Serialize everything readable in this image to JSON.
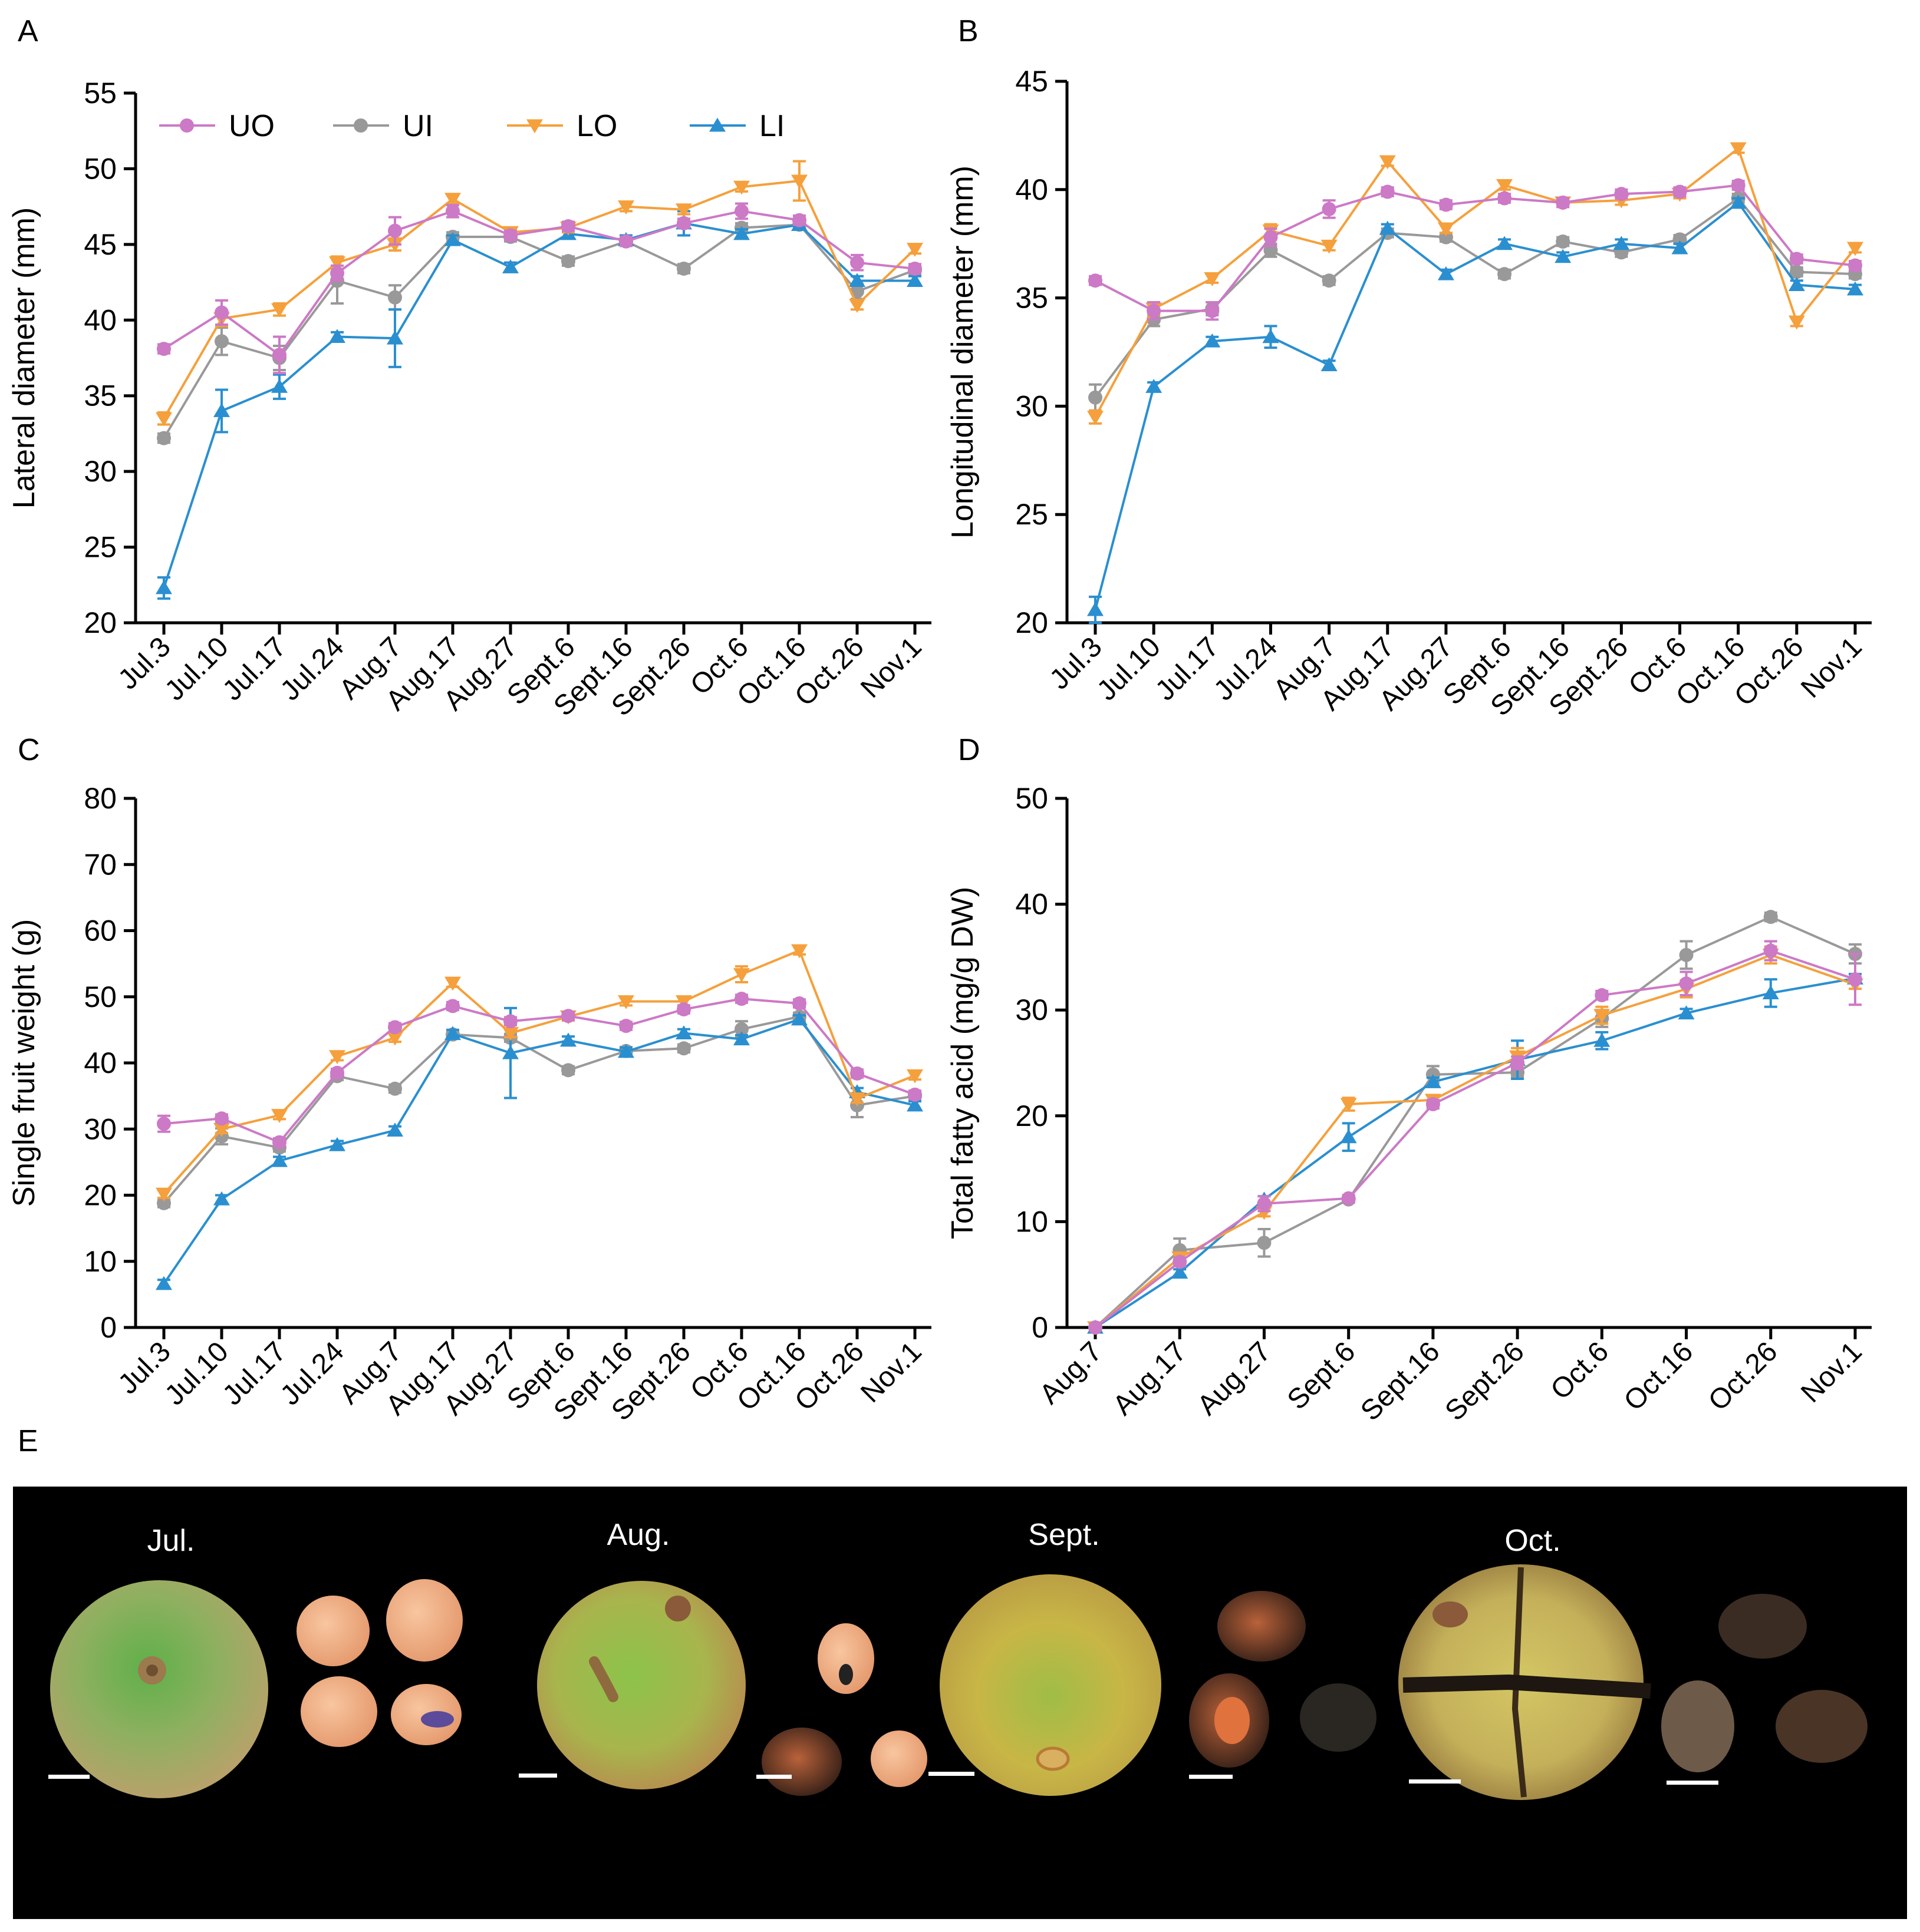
{
  "colors": {
    "UO": "#cc79c6",
    "UI": "#999999",
    "LO": "#f5a03c",
    "LI": "#2a8fd0"
  },
  "legend": [
    {
      "key": "UO",
      "label": "UO",
      "marker": "circle"
    },
    {
      "key": "UI",
      "label": "UI",
      "marker": "circle"
    },
    {
      "key": "LO",
      "label": "LO",
      "marker": "triangle-down"
    },
    {
      "key": "LI",
      "label": "LI",
      "marker": "triangle-up"
    }
  ],
  "chart_data": [
    {
      "panel": "A",
      "type": "line",
      "ylabel": "Lateral diameter (mm)",
      "ylim": [
        20,
        55
      ],
      "yticks": [
        20,
        25,
        30,
        35,
        40,
        45,
        50,
        55
      ],
      "categories": [
        "Jul.3",
        "Jul.10",
        "Jul.17",
        "Jul.24",
        "Aug.7",
        "Aug.17",
        "Aug.27",
        "Sept.6",
        "Sept.16",
        "Sept.26",
        "Oct.6",
        "Oct.16",
        "Oct.26",
        "Nov.1"
      ],
      "legend_position": "top",
      "series": [
        {
          "name": "UO",
          "values": [
            38.1,
            40.5,
            37.7,
            43.1,
            45.9,
            47.2,
            45.6,
            46.2,
            45.2,
            46.4,
            47.2,
            46.6,
            43.8,
            43.4
          ],
          "errors": [
            0.3,
            0.8,
            1.2,
            0.5,
            0.9,
            0.4,
            0.3,
            0.3,
            0.3,
            0.3,
            0.5,
            0.3,
            0.5,
            0.3
          ]
        },
        {
          "name": "UI",
          "values": [
            32.2,
            38.6,
            37.5,
            42.6,
            41.5,
            45.5,
            45.5,
            43.9,
            45.2,
            43.4,
            46.1,
            46.3,
            41.9,
            43.3
          ],
          "errors": [
            0.3,
            0.9,
            0.8,
            1.5,
            0.8,
            0.3,
            0.3,
            0.3,
            0.3,
            0.3,
            0.3,
            0.3,
            0.5,
            0.3
          ]
        },
        {
          "name": "LO",
          "values": [
            33.5,
            40.1,
            40.7,
            43.8,
            45.0,
            48.0,
            45.8,
            46.1,
            47.5,
            47.3,
            48.8,
            49.2,
            41.0,
            44.7
          ],
          "errors": [
            0.4,
            0.5,
            0.4,
            0.4,
            0.4,
            0.3,
            0.3,
            0.3,
            0.3,
            0.3,
            0.3,
            1.3,
            0.3,
            0.3
          ]
        },
        {
          "name": "LI",
          "values": [
            22.3,
            34.0,
            35.6,
            38.9,
            38.8,
            45.3,
            43.5,
            45.7,
            45.3,
            46.4,
            45.7,
            46.3,
            42.6,
            42.6
          ],
          "errors": [
            0.7,
            1.4,
            0.8,
            0.3,
            1.9,
            0.3,
            0.3,
            0.3,
            0.3,
            0.8,
            0.3,
            0.3,
            0.3,
            0.3
          ]
        }
      ]
    },
    {
      "panel": "B",
      "type": "line",
      "ylabel": "Longitudinal diameter (mm)",
      "ylim": [
        20,
        45
      ],
      "yticks": [
        20,
        25,
        30,
        35,
        40,
        45
      ],
      "categories": [
        "Jul.3",
        "Jul.10",
        "Jul.17",
        "Jul.24",
        "Aug.7",
        "Aug.17",
        "Aug.27",
        "Sept.6",
        "Sept.16",
        "Sept.26",
        "Oct.6",
        "Oct.16",
        "Oct.26",
        "Nov.1"
      ],
      "series": [
        {
          "name": "UO",
          "values": [
            35.8,
            34.4,
            34.4,
            37.8,
            39.1,
            39.9,
            39.3,
            39.6,
            39.4,
            39.8,
            39.9,
            40.2,
            36.8,
            36.5
          ],
          "errors": [
            0.2,
            0.4,
            0.4,
            0.4,
            0.4,
            0.2,
            0.2,
            0.2,
            0.2,
            0.2,
            0.2,
            0.2,
            0.2,
            0.2
          ]
        },
        {
          "name": "UI",
          "values": [
            30.4,
            34.0,
            34.5,
            37.2,
            35.8,
            38.0,
            37.8,
            36.1,
            37.6,
            37.1,
            37.7,
            39.6,
            36.2,
            36.1
          ],
          "errors": [
            0.6,
            0.3,
            0.3,
            0.3,
            0.2,
            0.2,
            0.2,
            0.2,
            0.2,
            0.2,
            0.2,
            0.2,
            0.2,
            0.2
          ]
        },
        {
          "name": "LO",
          "values": [
            29.5,
            34.5,
            35.9,
            38.1,
            37.4,
            41.3,
            38.2,
            40.2,
            39.4,
            39.5,
            39.8,
            41.9,
            33.9,
            37.3
          ],
          "errors": [
            0.3,
            0.3,
            0.2,
            0.3,
            0.2,
            0.2,
            0.2,
            0.2,
            0.2,
            0.2,
            0.2,
            0.2,
            0.2,
            0.2
          ]
        },
        {
          "name": "LI",
          "values": [
            20.6,
            30.9,
            33.0,
            33.2,
            31.9,
            38.2,
            36.1,
            37.5,
            36.9,
            37.5,
            37.3,
            39.4,
            35.6,
            35.4
          ],
          "errors": [
            0.6,
            0.2,
            0.2,
            0.5,
            0.2,
            0.2,
            0.2,
            0.2,
            0.2,
            0.2,
            0.2,
            0.2,
            0.2,
            0.2
          ]
        }
      ]
    },
    {
      "panel": "C",
      "type": "line",
      "ylabel": "Single fruit weight (g)",
      "ylim": [
        0,
        80
      ],
      "yticks": [
        0,
        10,
        20,
        30,
        40,
        50,
        60,
        70,
        80
      ],
      "categories": [
        "Jul.3",
        "Jul.10",
        "Jul.17",
        "Jul.24",
        "Aug.7",
        "Aug.17",
        "Aug.27",
        "Sept.6",
        "Sept.16",
        "Sept.26",
        "Oct.6",
        "Oct.16",
        "Oct.26",
        "Nov.1"
      ],
      "series": [
        {
          "name": "UO",
          "values": [
            30.8,
            31.6,
            28.0,
            38.5,
            45.4,
            48.6,
            46.3,
            47.1,
            45.6,
            48.1,
            49.7,
            49.0,
            38.4,
            35.2
          ],
          "errors": [
            1.2,
            0.6,
            0.6,
            0.6,
            0.6,
            0.6,
            0.6,
            0.6,
            0.6,
            0.6,
            0.6,
            0.6,
            0.6,
            0.6
          ]
        },
        {
          "name": "UI",
          "values": [
            18.8,
            28.9,
            27.2,
            38.0,
            36.1,
            44.3,
            43.8,
            38.9,
            41.8,
            42.2,
            45.1,
            47.0,
            33.6,
            35.0
          ],
          "errors": [
            0.6,
            1.2,
            0.6,
            0.6,
            0.6,
            0.6,
            0.6,
            0.6,
            0.6,
            0.6,
            1.2,
            0.6,
            1.8,
            0.6
          ]
        },
        {
          "name": "LO",
          "values": [
            20.2,
            30.0,
            32.1,
            41.0,
            43.8,
            52.1,
            44.5,
            47.0,
            49.3,
            49.3,
            53.4,
            57.0,
            34.6,
            38.1
          ],
          "errors": [
            0.6,
            0.6,
            0.6,
            0.6,
            0.6,
            0.6,
            0.6,
            0.6,
            0.6,
            0.6,
            1.2,
            0.6,
            0.6,
            0.6
          ]
        },
        {
          "name": "LI",
          "values": [
            6.6,
            19.4,
            25.2,
            27.6,
            29.8,
            44.4,
            41.5,
            43.4,
            41.7,
            44.5,
            43.6,
            46.6,
            35.6,
            33.6
          ],
          "errors": [
            0.6,
            0.6,
            0.6,
            0.6,
            0.6,
            0.6,
            6.8,
            0.6,
            0.6,
            0.6,
            0.6,
            0.6,
            0.6,
            0.6
          ]
        }
      ]
    },
    {
      "panel": "D",
      "type": "line",
      "ylabel": "Total fatty acid (mg/g DW)",
      "ylim": [
        0,
        50
      ],
      "yticks": [
        0,
        10,
        20,
        30,
        40,
        50
      ],
      "categories": [
        "Aug.7",
        "Aug.17",
        "Aug.27",
        "Sept.6",
        "Sept.16",
        "Sept.26",
        "Oct.6",
        "Oct.16",
        "Oct.26",
        "Nov.1"
      ],
      "series": [
        {
          "name": "UO",
          "values": [
            0.0,
            6.2,
            11.7,
            12.2,
            21.1,
            25.0,
            31.4,
            32.5,
            35.6,
            32.9
          ],
          "errors": [
            0.2,
            0.4,
            0.7,
            0.3,
            0.4,
            0.6,
            0.4,
            1.1,
            0.9,
            2.4
          ]
        },
        {
          "name": "UI",
          "values": [
            0.0,
            7.3,
            8.0,
            12.1,
            23.9,
            24.1,
            29.2,
            35.2,
            38.8,
            35.3
          ],
          "errors": [
            0.2,
            1.1,
            1.3,
            0.3,
            0.8,
            0.4,
            0.8,
            1.3,
            0.4,
            0.9
          ]
        },
        {
          "name": "LO",
          "values": [
            0.0,
            6.6,
            10.9,
            21.1,
            21.5,
            25.6,
            29.5,
            32.0,
            35.2,
            32.4
          ],
          "errors": [
            0.2,
            0.3,
            0.4,
            0.6,
            0.4,
            0.8,
            0.8,
            0.8,
            0.8,
            0.4
          ]
        },
        {
          "name": "LI",
          "values": [
            0.0,
            5.2,
            12.1,
            18.0,
            23.2,
            25.3,
            27.1,
            29.7,
            31.6,
            33.0
          ],
          "errors": [
            0.2,
            0.3,
            0.3,
            1.3,
            0.4,
            1.8,
            0.8,
            0.4,
            1.3,
            0.4
          ]
        }
      ]
    }
  ],
  "panel_E": {
    "letter": "E",
    "months": [
      "Jul.",
      "Aug.",
      "Sept.",
      "Oct."
    ]
  }
}
